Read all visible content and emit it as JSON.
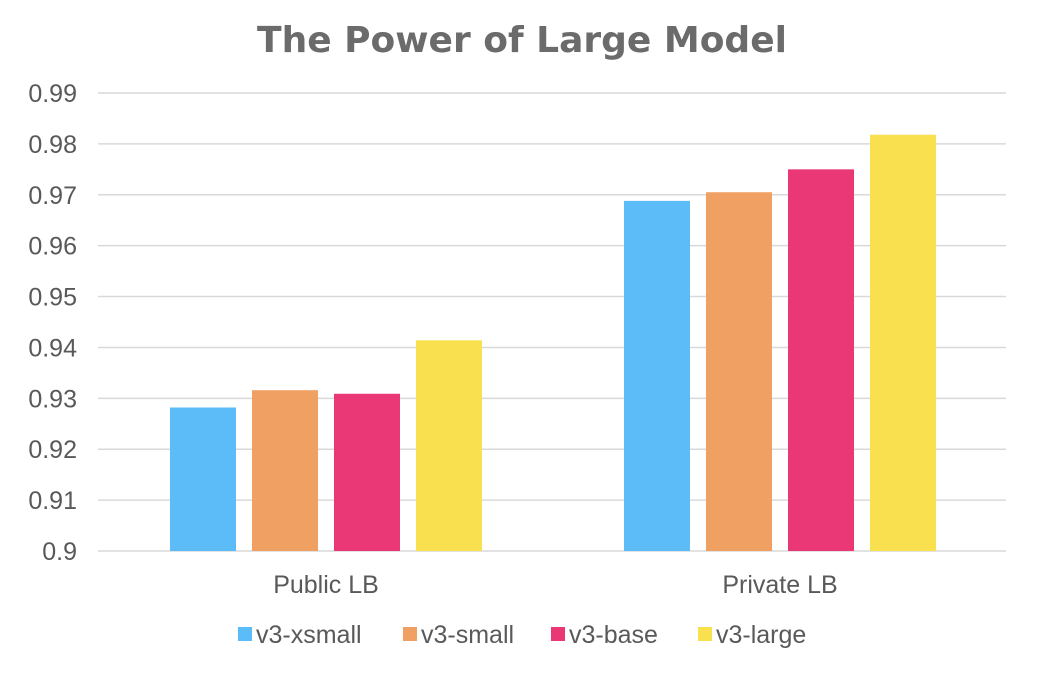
{
  "chart_data": {
    "type": "bar",
    "title": "The Power of Large Model",
    "xlabel": "",
    "ylabel": "",
    "categories": [
      "Public LB",
      "Private LB"
    ],
    "ylim": [
      0.9,
      0.99
    ],
    "yticks": [
      "0.9",
      "0.91",
      "0.92",
      "0.93",
      "0.94",
      "0.95",
      "0.96",
      "0.97",
      "0.98",
      "0.99"
    ],
    "grid": true,
    "legend_position": "bottom",
    "series": [
      {
        "name": "v3-xsmall",
        "color": "#5bbcf7",
        "values": [
          0.9282,
          0.9688
        ]
      },
      {
        "name": "v3-small",
        "color": "#f0a062",
        "values": [
          0.9316,
          0.9705
        ]
      },
      {
        "name": "v3-base",
        "color": "#ea3877",
        "values": [
          0.9309,
          0.975
        ]
      },
      {
        "name": "v3-large",
        "color": "#f8e04e",
        "values": [
          0.9414,
          0.9818
        ]
      }
    ]
  }
}
